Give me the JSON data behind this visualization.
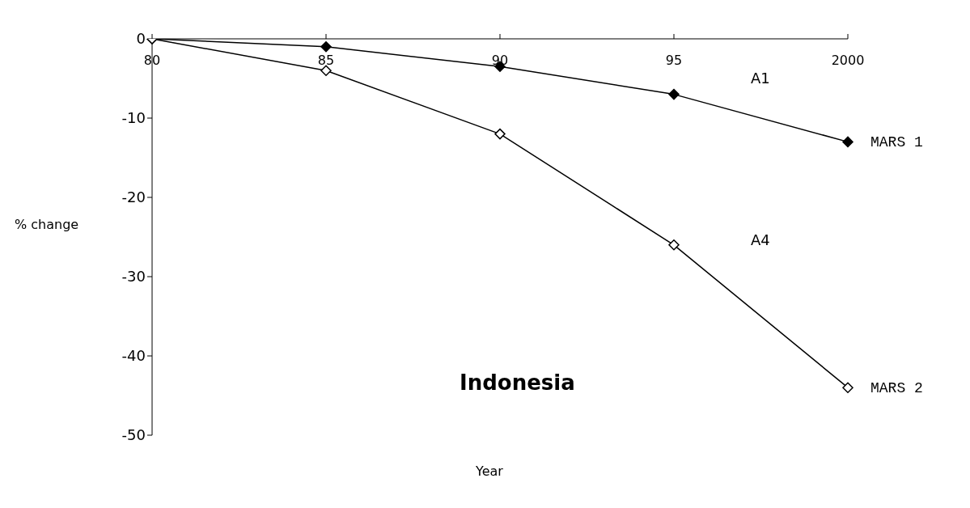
{
  "chart_data": {
    "type": "line",
    "title": "Indonesia",
    "xlabel": "Year",
    "ylabel": "% change",
    "categories": [
      "80",
      "85",
      "90",
      "95",
      "2000"
    ],
    "series": [
      {
        "name": "MARS 1",
        "color": "#000000",
        "values": [
          0,
          -1,
          -3.5,
          -7,
          -13
        ]
      },
      {
        "name": "MARS 2",
        "color": "#000000",
        "values": [
          0,
          -4,
          -12,
          -26,
          -44
        ]
      }
    ],
    "annotations": [
      "A1",
      "A4"
    ],
    "ylim": [
      -50,
      0
    ],
    "yticks": [
      -50,
      -40,
      -30,
      -20,
      -10,
      0
    ],
    "marker": "diamond",
    "line_style": "solid",
    "grid": false,
    "legend": false
  }
}
